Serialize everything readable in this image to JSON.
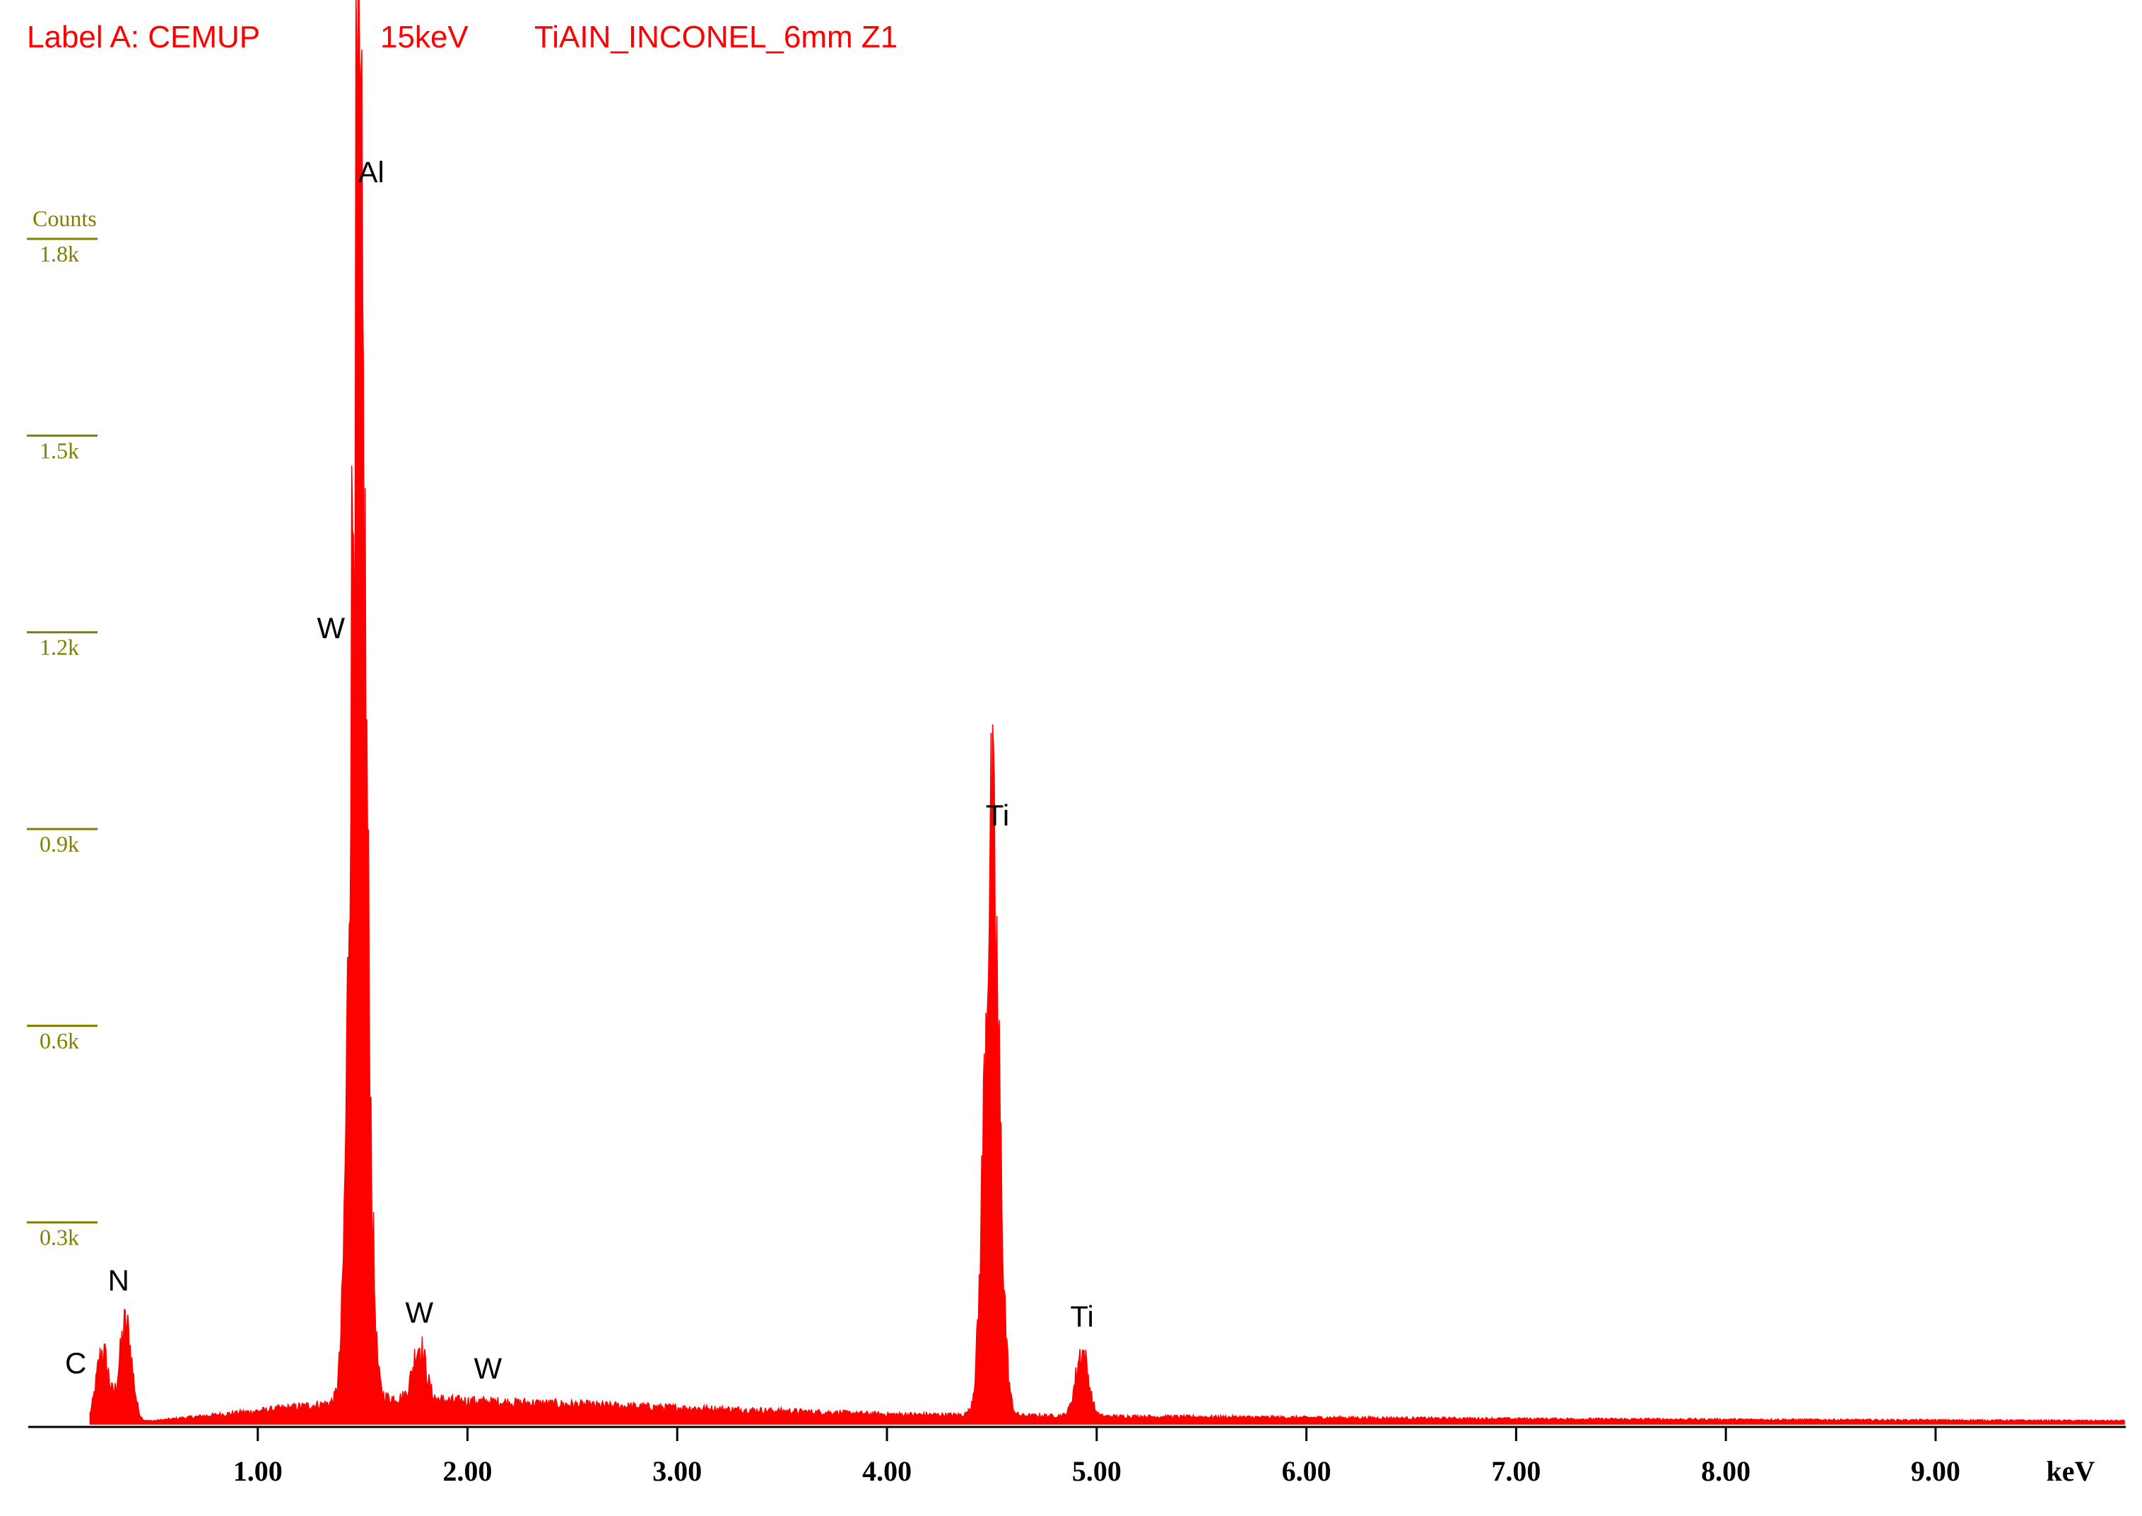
{
  "header": {
    "label": "Label A: CEMUP",
    "voltage": "15keV",
    "sample": "TiAIN_INCONEL_6mm  Z1"
  },
  "colors": {
    "spectrum": "#ff0000",
    "header_text": "#ff0000",
    "y_axis": "#808000",
    "x_axis": "#000000"
  },
  "chart_data": {
    "type": "area",
    "title": "",
    "xlabel": "keV",
    "ylabel": "Counts",
    "xlim": [
      0,
      9.9
    ],
    "ylim": [
      0,
      1.8
    ],
    "y_unit": "k counts",
    "grid": false,
    "x_ticks": [
      {
        "value": 1,
        "label": "1.00"
      },
      {
        "value": 2,
        "label": "2.00"
      },
      {
        "value": 3,
        "label": "3.00"
      },
      {
        "value": 4,
        "label": "4.00"
      },
      {
        "value": 5,
        "label": "5.00"
      },
      {
        "value": 6,
        "label": "6.00"
      },
      {
        "value": 7,
        "label": "7.00"
      },
      {
        "value": 8,
        "label": "8.00"
      },
      {
        "value": 9,
        "label": "9.00"
      }
    ],
    "y_ticks": [
      {
        "value": 0.3,
        "label": "0.3k"
      },
      {
        "value": 0.6,
        "label": "0.6k"
      },
      {
        "value": 0.9,
        "label": "0.9k"
      },
      {
        "value": 1.2,
        "label": "1.2k"
      },
      {
        "value": 1.5,
        "label": "1.5k"
      },
      {
        "value": 1.8,
        "label": "1.8k"
      }
    ],
    "peaks": [
      {
        "element": "C",
        "energy": 0.26,
        "counts": 0.11
      },
      {
        "element": "N",
        "energy": 0.37,
        "counts": 0.15
      },
      {
        "element": "Al",
        "energy": 1.48,
        "counts": 1.87
      },
      {
        "element": "W",
        "energy": 1.45,
        "counts": 1.22
      },
      {
        "element": "W",
        "energy": 1.77,
        "counts": 0.12
      },
      {
        "element": "W",
        "energy": 2.03,
        "counts": 0.035
      },
      {
        "element": "Ti",
        "energy": 4.5,
        "counts": 0.87
      },
      {
        "element": "Ti",
        "energy": 4.93,
        "counts": 0.11
      }
    ],
    "background": [
      {
        "energy": 0.0,
        "counts": 0.0
      },
      {
        "energy": 0.5,
        "counts": 0.005
      },
      {
        "energy": 1.0,
        "counts": 0.02
      },
      {
        "energy": 1.6,
        "counts": 0.04
      },
      {
        "energy": 2.0,
        "counts": 0.035
      },
      {
        "energy": 3.0,
        "counts": 0.025
      },
      {
        "energy": 4.0,
        "counts": 0.015
      },
      {
        "energy": 5.0,
        "counts": 0.012
      },
      {
        "energy": 7.0,
        "counts": 0.008
      },
      {
        "energy": 9.9,
        "counts": 0.005
      }
    ]
  }
}
